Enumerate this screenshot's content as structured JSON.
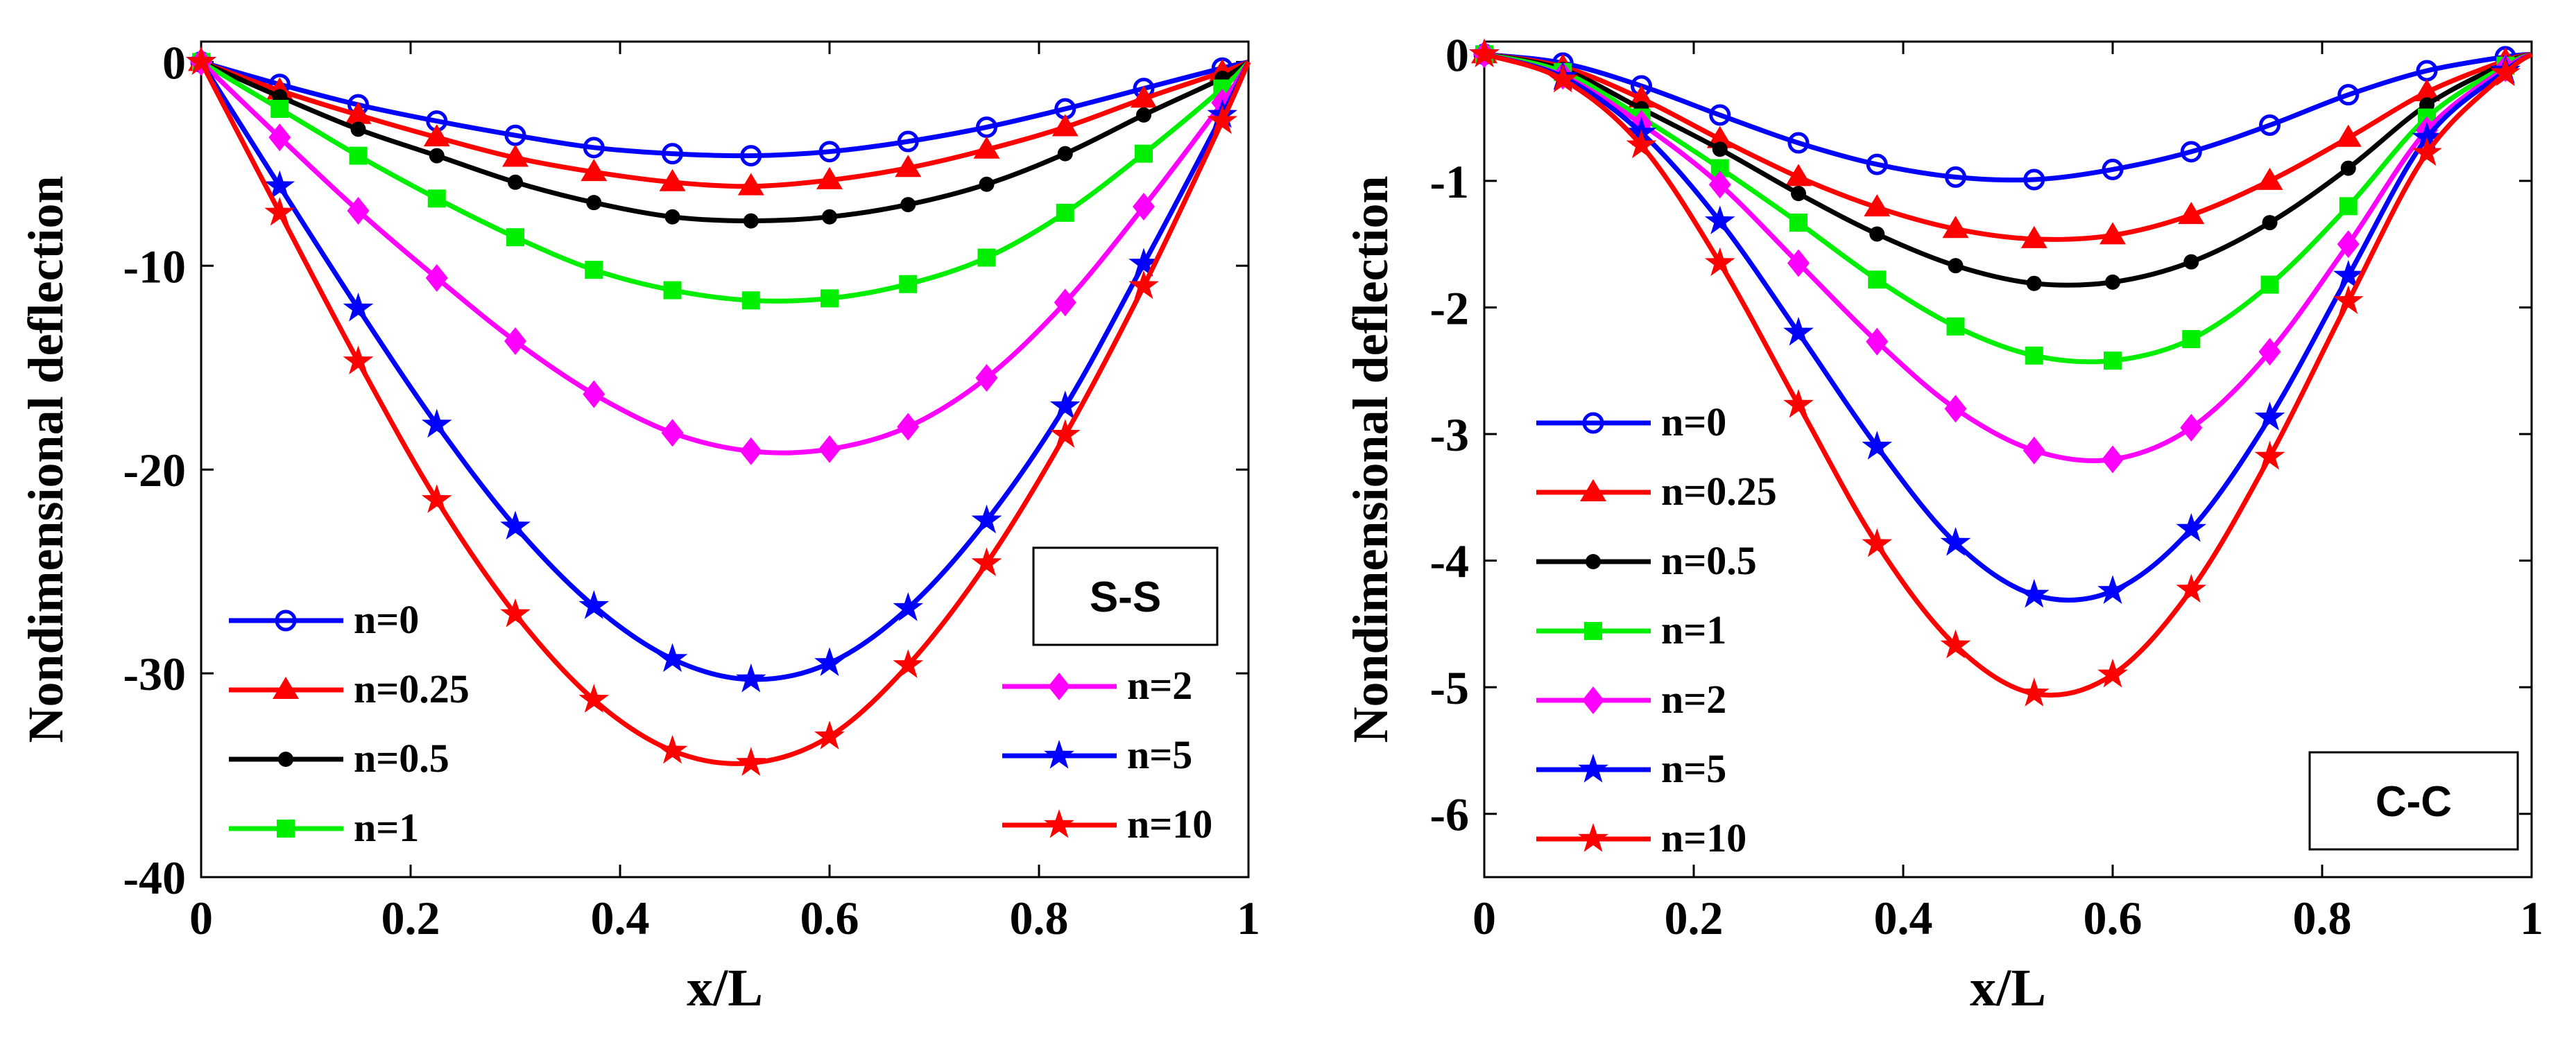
{
  "chart_data": [
    {
      "type": "line",
      "x": [
        0,
        0.075,
        0.15,
        0.225,
        0.3,
        0.375,
        0.45,
        0.525,
        0.6,
        0.675,
        0.75,
        0.825,
        0.9,
        0.975,
        1
      ],
      "xlabel": "x/L",
      "ylabel": "Nondimensional deflection",
      "xlim": [
        0,
        1
      ],
      "ylim": [
        -40,
        1
      ],
      "xticks": [
        "0",
        "0.2",
        "0.4",
        "0.6",
        "0.8",
        "1"
      ],
      "yticks": [
        "0",
        "-10",
        "-20",
        "-30",
        "-40"
      ],
      "annotation": "S-S",
      "legend_left": [
        "n=0",
        "n=0.25",
        "n=0.5",
        "n=1"
      ],
      "legend_right": [
        "n=2",
        "n=5",
        "n=10"
      ],
      "series": [
        {
          "name": "n=0",
          "color": "#0000ff",
          "marker": "circle",
          "values": [
            0,
            -1.1,
            -2.1,
            -2.9,
            -3.6,
            -4.2,
            -4.5,
            -4.6,
            -4.4,
            -3.9,
            -3.2,
            -2.3,
            -1.3,
            -0.3,
            0
          ]
        },
        {
          "name": "n=0.25",
          "color": "#ff0000",
          "marker": "triangle",
          "values": [
            0,
            -1.4,
            -2.6,
            -3.7,
            -4.7,
            -5.4,
            -5.9,
            -6.1,
            -5.8,
            -5.2,
            -4.3,
            -3.2,
            -1.8,
            -0.5,
            0
          ]
        },
        {
          "name": "n=0.5",
          "color": "#000000",
          "marker": "dot",
          "values": [
            0,
            -1.7,
            -3.3,
            -4.6,
            -5.9,
            -6.9,
            -7.6,
            -7.8,
            -7.6,
            -7.0,
            -6.0,
            -4.5,
            -2.6,
            -0.8,
            0
          ]
        },
        {
          "name": "n=1",
          "color": "#00ee00",
          "marker": "square",
          "values": [
            0,
            -2.3,
            -4.6,
            -6.7,
            -8.6,
            -10.2,
            -11.2,
            -11.7,
            -11.6,
            -10.9,
            -9.6,
            -7.4,
            -4.5,
            -1.3,
            0
          ]
        },
        {
          "name": "n=2",
          "color": "#ff00ff",
          "marker": "diamond",
          "values": [
            0,
            -3.7,
            -7.3,
            -10.6,
            -13.7,
            -16.3,
            -18.2,
            -19.1,
            -19.0,
            -17.9,
            -15.5,
            -11.8,
            -7.1,
            -2.0,
            0
          ]
        },
        {
          "name": "n=5",
          "color": "#0000ff",
          "marker": "star",
          "values": [
            0,
            -6.1,
            -12.1,
            -17.8,
            -22.8,
            -26.7,
            -29.3,
            -30.3,
            -29.5,
            -26.8,
            -22.5,
            -16.9,
            -9.9,
            -2.6,
            0
          ]
        },
        {
          "name": "n=10",
          "color": "#ff0000",
          "marker": "star",
          "values": [
            0,
            -7.4,
            -14.7,
            -21.5,
            -27.1,
            -31.3,
            -33.8,
            -34.4,
            -33.1,
            -29.6,
            -24.6,
            -18.3,
            -11.0,
            -2.9,
            0
          ]
        }
      ]
    },
    {
      "type": "line",
      "x": [
        0,
        0.075,
        0.15,
        0.225,
        0.3,
        0.375,
        0.45,
        0.525,
        0.6,
        0.675,
        0.75,
        0.825,
        0.9,
        0.975,
        1
      ],
      "xlabel": "x/L",
      "ylabel": "Nondimensional deflection",
      "xlim": [
        0,
        1
      ],
      "ylim": [
        -6.5,
        0.1
      ],
      "xticks": [
        "0",
        "0.2",
        "0.4",
        "0.6",
        "0.8",
        "1"
      ],
      "yticks": [
        "0",
        "-1",
        "-2",
        "-3",
        "-4",
        "-5",
        "-6"
      ],
      "annotation": "C-C",
      "legend": [
        "n=0",
        "n=0.25",
        "n=0.5",
        "n=1",
        "n=2",
        "n=5",
        "n=10"
      ],
      "series": [
        {
          "name": "n=0",
          "color": "#0000ff",
          "marker": "circle",
          "values": [
            0,
            -0.07,
            -0.25,
            -0.48,
            -0.7,
            -0.87,
            -0.97,
            -0.99,
            -0.91,
            -0.77,
            -0.56,
            -0.32,
            -0.13,
            -0.02,
            0
          ]
        },
        {
          "name": "n=0.25",
          "color": "#ff0000",
          "marker": "triangle",
          "values": [
            0,
            -0.1,
            -0.35,
            -0.67,
            -0.97,
            -1.21,
            -1.38,
            -1.46,
            -1.43,
            -1.27,
            -1.0,
            -0.66,
            -0.3,
            -0.05,
            0
          ]
        },
        {
          "name": "n=0.5",
          "color": "#000000",
          "marker": "dot",
          "values": [
            0,
            -0.12,
            -0.43,
            -0.75,
            -1.1,
            -1.42,
            -1.67,
            -1.81,
            -1.8,
            -1.64,
            -1.33,
            -0.9,
            -0.4,
            -0.07,
            0
          ]
        },
        {
          "name": "n=1",
          "color": "#00ee00",
          "marker": "square",
          "values": [
            0,
            -0.14,
            -0.5,
            -0.9,
            -1.33,
            -1.78,
            -2.15,
            -2.38,
            -2.42,
            -2.25,
            -1.82,
            -1.2,
            -0.5,
            -0.09,
            0
          ]
        },
        {
          "name": "n=2",
          "color": "#ff00ff",
          "marker": "diamond",
          "values": [
            0,
            -0.17,
            -0.55,
            -1.03,
            -1.65,
            -2.27,
            -2.8,
            -3.13,
            -3.2,
            -2.95,
            -2.35,
            -1.5,
            -0.6,
            -0.11,
            0
          ]
        },
        {
          "name": "n=5",
          "color": "#0000ff",
          "marker": "star",
          "values": [
            0,
            -0.18,
            -0.62,
            -1.32,
            -2.2,
            -3.1,
            -3.86,
            -4.27,
            -4.24,
            -3.75,
            -2.87,
            -1.75,
            -0.66,
            -0.13,
            0
          ]
        },
        {
          "name": "n=10",
          "color": "#ff0000",
          "marker": "star",
          "values": [
            0,
            -0.2,
            -0.72,
            -1.65,
            -2.77,
            -3.87,
            -4.67,
            -5.05,
            -4.9,
            -4.23,
            -3.18,
            -1.95,
            -0.78,
            -0.15,
            0
          ]
        }
      ]
    }
  ]
}
